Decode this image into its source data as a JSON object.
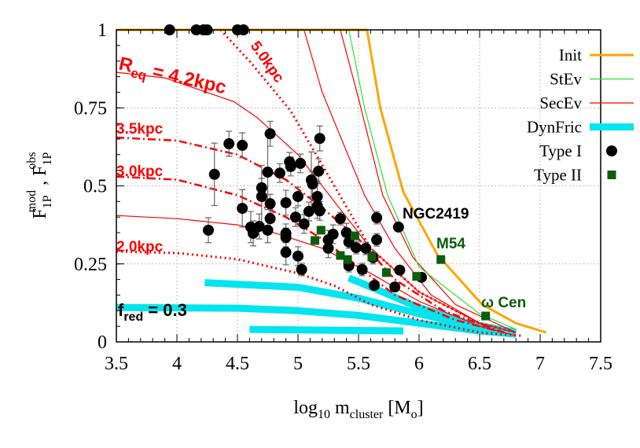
{
  "chart_data": {
    "type": "scatter",
    "title": "",
    "xlabel": {
      "main": "log",
      "sub1": "10",
      "mid": " m",
      "sub2": "cluster",
      "end": " [M",
      "sub3": "o",
      "close": "]"
    },
    "ylabel": {
      "f1": "F",
      "sub1": "1P",
      "sup1": "mod",
      "sep": " , ",
      "f2": "F",
      "sub2": "1P",
      "sup2": "obs"
    },
    "xlim": [
      3.5,
      7.5
    ],
    "ylim": [
      0,
      1
    ],
    "xticks": [
      "3.5",
      "4",
      "4.5",
      "5",
      "5.5",
      "6",
      "6.5",
      "7",
      "7.5"
    ],
    "xtick_values": [
      3.5,
      4,
      4.5,
      5,
      5.5,
      6,
      6.5,
      7,
      7.5
    ],
    "yticks": [
      "0",
      "0.25",
      "0.5",
      "0.75",
      "1"
    ],
    "ytick_values": [
      0,
      0.25,
      0.5,
      0.75,
      1
    ],
    "grid": true,
    "legend_placement": "top-right",
    "legend": [
      {
        "label": "Init",
        "kind": "line",
        "color": "#ffa500"
      },
      {
        "label": "StEv",
        "kind": "line",
        "color": "#33dd33"
      },
      {
        "label": "SecEv",
        "kind": "line",
        "color": "#ff0000"
      },
      {
        "label": "DynFric",
        "kind": "thick",
        "color": "#00e5ee"
      },
      {
        "label": "Type  I",
        "kind": "circle",
        "color": "#000000"
      },
      {
        "label": "Type II",
        "kind": "square",
        "color": "#0b5e0b"
      }
    ],
    "curves": [
      {
        "series": "Init",
        "style": "solid",
        "color": "#ffa500",
        "points": [
          [
            3.5,
            1
          ],
          [
            5.57,
            1
          ],
          [
            5.68,
            0.75
          ],
          [
            5.87,
            0.48
          ],
          [
            6.15,
            0.28
          ],
          [
            6.52,
            0.12
          ],
          [
            6.8,
            0.06
          ],
          [
            7.05,
            0.03
          ]
        ]
      },
      {
        "series": "StEv",
        "style": "solid",
        "color": "#33dd33",
        "points": [
          [
            3.5,
            1
          ],
          [
            5.42,
            1
          ],
          [
            5.55,
            0.75
          ],
          [
            5.74,
            0.47
          ],
          [
            6.0,
            0.24
          ],
          [
            6.5,
            0.09
          ],
          [
            6.8,
            0.04
          ]
        ]
      },
      {
        "series": "SecEv",
        "style": "solid",
        "color": "#ff0000",
        "points": [
          [
            5.35,
            1
          ],
          [
            5.5,
            0.78
          ],
          [
            5.7,
            0.47
          ],
          [
            5.95,
            0.27
          ],
          [
            6.3,
            0.12
          ],
          [
            6.8,
            0.03
          ]
        ]
      },
      {
        "series": "SecEv",
        "style": "solid",
        "color": "#ff0000",
        "points": [
          [
            5.05,
            1
          ],
          [
            5.2,
            0.8
          ],
          [
            5.55,
            0.47
          ],
          [
            5.8,
            0.3
          ],
          [
            6.1,
            0.15
          ],
          [
            6.5,
            0.06
          ],
          [
            6.8,
            0.03
          ]
        ]
      },
      {
        "series": "SecEv",
        "label": "4.2kpc",
        "style": "solid",
        "color": "#ff0000",
        "points": [
          [
            3.5,
            0.864
          ],
          [
            3.9,
            0.846
          ],
          [
            4.47,
            0.77
          ],
          [
            4.66,
            0.72
          ],
          [
            5.0,
            0.6
          ],
          [
            5.3,
            0.45
          ],
          [
            5.6,
            0.3
          ],
          [
            6.0,
            0.16
          ],
          [
            6.5,
            0.06
          ],
          [
            6.8,
            0.03
          ]
        ]
      },
      {
        "series": "SecEv",
        "label": "5.0kpc",
        "style": "dotted",
        "color": "#ff0000",
        "points": [
          [
            4.36,
            1
          ],
          [
            4.6,
            0.9
          ],
          [
            4.94,
            0.74
          ],
          [
            5.3,
            0.5
          ],
          [
            5.6,
            0.3
          ],
          [
            6.0,
            0.16
          ],
          [
            6.5,
            0.06
          ],
          [
            6.8,
            0.03
          ]
        ]
      },
      {
        "series": "SecEv",
        "label": "3.5kpc",
        "style": "dashdot",
        "color": "#ff0000",
        "points": [
          [
            3.5,
            0.655
          ],
          [
            4.0,
            0.645
          ],
          [
            4.5,
            0.6
          ],
          [
            4.9,
            0.52
          ],
          [
            5.2,
            0.43
          ],
          [
            5.5,
            0.33
          ],
          [
            5.8,
            0.2
          ],
          [
            6.2,
            0.1
          ],
          [
            6.7,
            0.03
          ]
        ]
      },
      {
        "series": "SecEv",
        "label": "3.0kpc",
        "style": "dashdot",
        "color": "#ff0000",
        "points": [
          [
            3.5,
            0.53
          ],
          [
            4.0,
            0.52
          ],
          [
            4.5,
            0.47
          ],
          [
            4.9,
            0.4
          ],
          [
            5.2,
            0.33
          ],
          [
            5.5,
            0.24
          ],
          [
            5.8,
            0.15
          ],
          [
            6.3,
            0.07
          ],
          [
            6.7,
            0.03
          ]
        ]
      },
      {
        "series": "SecEv",
        "style": "solid",
        "color": "#ff0000",
        "points": [
          [
            3.5,
            0.405
          ],
          [
            4.0,
            0.395
          ],
          [
            4.5,
            0.375
          ],
          [
            4.8,
            0.35
          ],
          [
            5.2,
            0.3
          ],
          [
            5.6,
            0.22
          ],
          [
            6.0,
            0.13
          ],
          [
            6.5,
            0.05
          ],
          [
            6.8,
            0.02
          ]
        ]
      },
      {
        "series": "SecEv",
        "label": "2.0kpc",
        "style": "dotted",
        "color": "#ff0000",
        "points": [
          [
            3.5,
            0.29
          ],
          [
            4.0,
            0.285
          ],
          [
            4.5,
            0.265
          ],
          [
            5.0,
            0.22
          ],
          [
            5.3,
            0.18
          ],
          [
            5.6,
            0.12
          ],
          [
            6.0,
            0.07
          ],
          [
            6.5,
            0.03
          ],
          [
            6.85,
            0.02
          ]
        ]
      },
      {
        "series": "DynFric",
        "style": "thick",
        "color": "#00e5ee",
        "points": [
          [
            4.23,
            0.19
          ],
          [
            5.0,
            0.175
          ],
          [
            5.5,
            0.14
          ],
          [
            6.0,
            0.09
          ],
          [
            6.5,
            0.045
          ],
          [
            6.8,
            0.03
          ]
        ]
      },
      {
        "series": "DynFric",
        "style": "thick",
        "color": "#00e5ee",
        "points": [
          [
            5.42,
            0.205
          ],
          [
            5.7,
            0.16
          ],
          [
            6.0,
            0.11
          ],
          [
            6.4,
            0.06
          ],
          [
            6.8,
            0.03
          ]
        ]
      },
      {
        "series": "DynFric",
        "label": "f_red = 0.3",
        "style": "thick",
        "color": "#00e5ee",
        "points": [
          [
            3.5,
            0.11
          ],
          [
            4.5,
            0.108
          ],
          [
            5.0,
            0.1
          ],
          [
            5.5,
            0.085
          ],
          [
            6.0,
            0.06
          ],
          [
            6.5,
            0.035
          ],
          [
            6.8,
            0.025
          ]
        ]
      },
      {
        "series": "DynFric",
        "style": "thick",
        "color": "#00e5ee",
        "points": [
          [
            4.6,
            0.04
          ],
          [
            5.87,
            0.035
          ]
        ]
      }
    ],
    "type1_points": [
      [
        3.94,
        1,
        0
      ],
      [
        4.16,
        1,
        0
      ],
      [
        4.22,
        1,
        0
      ],
      [
        4.25,
        1,
        0
      ],
      [
        4.5,
        1,
        0
      ],
      [
        4.55,
        1,
        0
      ],
      [
        4.43,
        0.635,
        0.04
      ],
      [
        4.54,
        0.63,
        0.04
      ],
      [
        4.77,
        0.667,
        0.04
      ],
      [
        5.18,
        0.652,
        0.04
      ],
      [
        4.31,
        0.537,
        0.1
      ],
      [
        4.26,
        0.358,
        0.04
      ],
      [
        4.54,
        0.428,
        0.06
      ],
      [
        4.61,
        0.368,
        0.05
      ],
      [
        4.63,
        0.348,
        0.04
      ],
      [
        4.68,
        0.37,
        0.04
      ],
      [
        4.75,
        0.358,
        0.04
      ],
      [
        4.75,
        0.544,
        0.12
      ],
      [
        4.85,
        0.541,
        0.03
      ],
      [
        4.93,
        0.577,
        0.03
      ],
      [
        4.94,
        0.562,
        0.03
      ],
      [
        5.02,
        0.572,
        0.03
      ],
      [
        4.7,
        0.494,
        0.03
      ],
      [
        4.7,
        0.466,
        0.1
      ],
      [
        4.77,
        0.443,
        0.03
      ],
      [
        4.77,
        0.395,
        0.03
      ],
      [
        4.9,
        0.446,
        0.04
      ],
      [
        5.0,
        0.466,
        0.03
      ],
      [
        4.98,
        0.4,
        0.03
      ],
      [
        5.05,
        0.378,
        0.03
      ],
      [
        5.09,
        0.418,
        0.03
      ],
      [
        5.11,
        0.519,
        0.09
      ],
      [
        5.12,
        0.506,
        0.04
      ],
      [
        5.16,
        0.466,
        0.05
      ],
      [
        5.16,
        0.436,
        0.04
      ],
      [
        5.18,
        0.42,
        0.03
      ],
      [
        5.17,
        0.547,
        0.04
      ],
      [
        4.9,
        0.348,
        0.03
      ],
      [
        4.9,
        0.335,
        0.03
      ],
      [
        4.9,
        0.287,
        0.04
      ],
      [
        5.0,
        0.275,
        0.03
      ],
      [
        5.03,
        0.232,
        0.02
      ],
      [
        5.25,
        0.327,
        0.03
      ],
      [
        5.25,
        0.3,
        0.03
      ],
      [
        5.29,
        0.345,
        0.03
      ],
      [
        5.35,
        0.395,
        0.02
      ],
      [
        5.4,
        0.35,
        0.03
      ],
      [
        5.42,
        0.32,
        0.02
      ],
      [
        5.42,
        0.244,
        0.02
      ],
      [
        5.53,
        0.232,
        0.02
      ],
      [
        5.48,
        0.302,
        0.02
      ],
      [
        5.56,
        0.3,
        0.02
      ],
      [
        5.62,
        0.27,
        0.02
      ],
      [
        5.65,
        0.327,
        0.02
      ],
      [
        5.65,
        0.398,
        0.02
      ],
      [
        5.83,
        0.368,
        0
      ],
      [
        5.63,
        0.181,
        0
      ],
      [
        5.8,
        0.176,
        0
      ],
      [
        5.84,
        0.23,
        0
      ],
      [
        6.02,
        0.207,
        0
      ]
    ],
    "type2_points": [
      [
        5.14,
        0.325
      ],
      [
        5.19,
        0.358
      ],
      [
        5.47,
        0.34
      ],
      [
        5.35,
        0.277
      ],
      [
        5.41,
        0.264
      ],
      [
        5.61,
        0.272
      ],
      [
        5.73,
        0.222
      ],
      [
        5.98,
        0.21
      ],
      [
        6.18,
        0.264
      ],
      [
        6.55,
        0.083
      ]
    ],
    "annotations": {
      "req_R": "R",
      "req_sub": "eq",
      "req_rest": " = 4.2kpc",
      "k50": "5.0kpc",
      "k35": "3.5kpc",
      "k30": "3.0kpc",
      "k20": "2.0kpc",
      "fred_f": "f",
      "fred_sub": "red",
      "fred_rest": " = 0.3",
      "ngc": "NGC2419",
      "m54": "M54",
      "omega": "ω Cen"
    }
  }
}
